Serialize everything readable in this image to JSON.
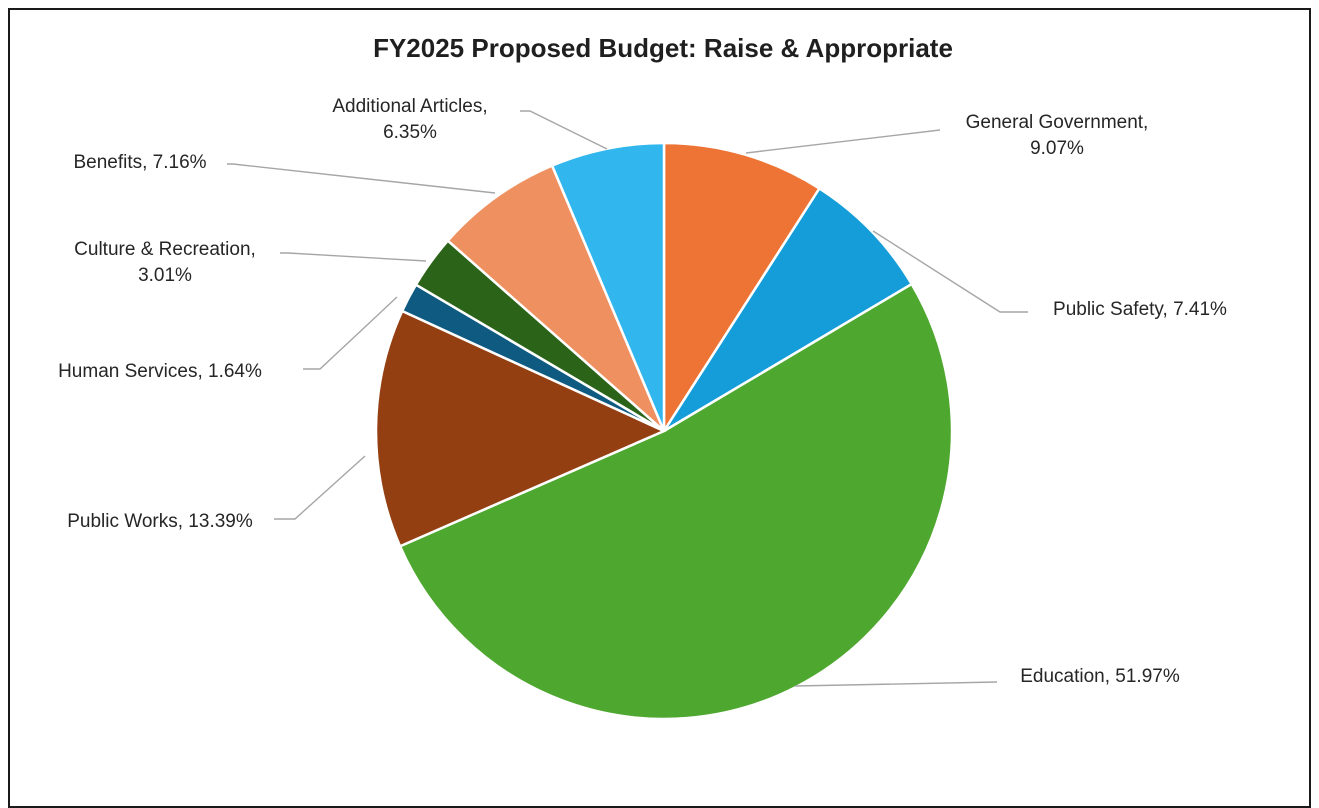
{
  "chart_data": {
    "type": "pie",
    "title": "FY2025 Proposed Budget: Raise & Appropriate",
    "slices": [
      {
        "name": "General Government",
        "value": 9.07,
        "label": [
          "General Government,",
          "9.07%"
        ],
        "color": "#ed7434"
      },
      {
        "name": "Public Safety",
        "value": 7.41,
        "label": [
          "Public Safety, 7.41%"
        ],
        "color": "#159dd9"
      },
      {
        "name": "Education",
        "value": 51.97,
        "label": [
          "Education, 51.97%"
        ],
        "color": "#4ea72e"
      },
      {
        "name": "Public Works",
        "value": 13.39,
        "label": [
          "Public Works, 13.39%"
        ],
        "color": "#943f12"
      },
      {
        "name": "Human Services",
        "value": 1.64,
        "label": [
          "Human Services, 1.64%"
        ],
        "color": "#0e5a80"
      },
      {
        "name": "Culture & Recreation",
        "value": 3.01,
        "label": [
          "Culture & Recreation,",
          "3.01%"
        ],
        "color": "#2b6419"
      },
      {
        "name": "Benefits",
        "value": 7.16,
        "label": [
          "Benefits, 7.16%"
        ],
        "color": "#ef9060"
      },
      {
        "name": "Additional Articles",
        "value": 6.35,
        "label": [
          "Additional Articles,",
          "6.35%"
        ],
        "color": "#32b6ee"
      }
    ],
    "start_angle": "12 o'clock",
    "direction": "clockwise",
    "legend": "none",
    "data_labels": "outside with leader lines"
  }
}
